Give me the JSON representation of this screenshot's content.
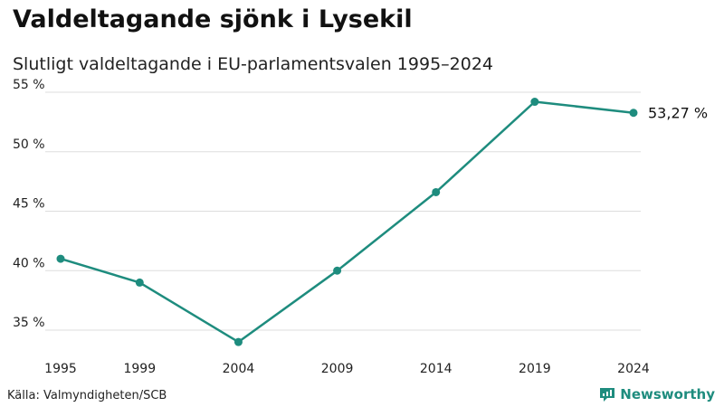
{
  "header": {
    "title": "Valdeltagande sjönk i Lysekil",
    "subtitle": "Slutligt valdeltagande i EU-parlamentsvalen 1995–2024"
  },
  "footer": {
    "source": "Källa: Valmyndigheten/SCB",
    "brand": "Newsworthy"
  },
  "colors": {
    "line": "#1e8c7e",
    "grid": "#dddddd",
    "brand": "#1e8c7e"
  },
  "chart_data": {
    "type": "line",
    "title": "Valdeltagande sjönk i Lysekil",
    "subtitle": "Slutligt valdeltagande i EU-parlamentsvalen 1995–2024",
    "xlabel": "",
    "ylabel": "",
    "categories": [
      "1995",
      "1999",
      "2004",
      "2009",
      "2014",
      "2019",
      "2024"
    ],
    "x": [
      1995,
      1999,
      2004,
      2009,
      2014,
      2019,
      2024
    ],
    "series": [
      {
        "name": "Valdeltagande",
        "values": [
          41.0,
          39.0,
          34.0,
          40.0,
          46.6,
          54.2,
          53.27
        ]
      }
    ],
    "ylim": [
      35,
      55
    ],
    "yticks": [
      35,
      40,
      45,
      50,
      55
    ],
    "ytick_labels": [
      "35 %",
      "40 %",
      "45 %",
      "50 %",
      "55 %"
    ],
    "grid": true,
    "end_label": "53,27 %"
  }
}
